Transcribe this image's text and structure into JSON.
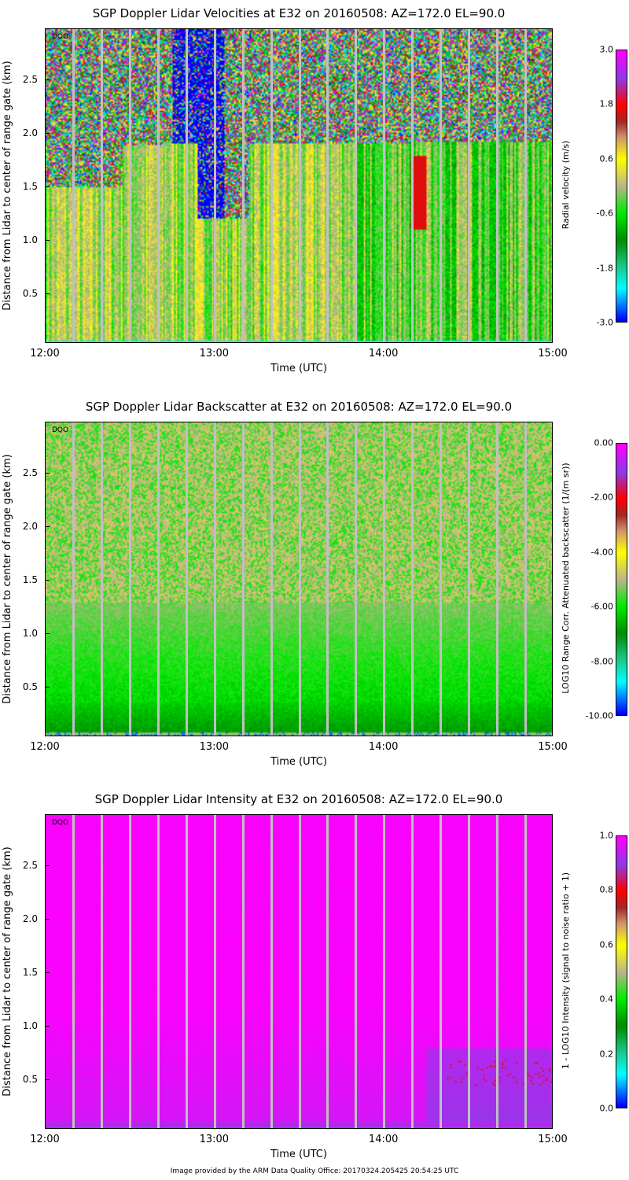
{
  "footer": "Image provided by the ARM Data Quality Office: 20170324.205425 20:54:25 UTC",
  "chart_data": [
    {
      "type": "heatmap",
      "title": "SGP Doppler Lidar Velocities at E32 on 20160508: AZ=172.0 EL=90.0",
      "xlabel": "Time (UTC)",
      "ylabel": "Distance from Lidar to center of range gate (km)",
      "xticks": [
        "12:00",
        "13:00",
        "14:00",
        "15:00"
      ],
      "yticks": [
        "0.5",
        "1.0",
        "1.5",
        "2.0",
        "2.5"
      ],
      "ylim": [
        0.04,
        2.98
      ],
      "xlim_hours": [
        12,
        15
      ],
      "flag": "DQO",
      "colorbar_label": "Radial velocity (m/s)",
      "colorbar_ticks": [
        "3.0",
        "1.8",
        "0.6",
        "-0.6",
        "-1.8",
        "-3.0"
      ],
      "zlim": [
        -3,
        3
      ],
      "field": "velocity",
      "data_gaps_minutes_after_12": [
        10,
        20,
        30,
        40,
        50,
        60,
        70,
        80,
        90,
        100,
        110,
        120,
        130,
        140,
        150,
        160,
        170
      ]
    },
    {
      "type": "heatmap",
      "title": "SGP Doppler Lidar Backscatter at E32 on 20160508: AZ=172.0 EL=90.0",
      "xlabel": "Time (UTC)",
      "ylabel": "Distance from Lidar to center of range gate (km)",
      "xticks": [
        "12:00",
        "13:00",
        "14:00",
        "15:00"
      ],
      "yticks": [
        "0.5",
        "1.0",
        "1.5",
        "2.0",
        "2.5"
      ],
      "ylim": [
        0.04,
        2.98
      ],
      "xlim_hours": [
        12,
        15
      ],
      "flag": "DQO",
      "colorbar_label": "LOG10 Range Corr. Attenuated backscatter (1/(m sr))",
      "colorbar_ticks": [
        "0.00",
        "-2.00",
        "-4.00",
        "-6.00",
        "-8.00",
        "-10.00"
      ],
      "zlim": [
        -10,
        0
      ],
      "field": "backscatter",
      "data_gaps_minutes_after_12": [
        10,
        20,
        30,
        40,
        50,
        60,
        70,
        80,
        90,
        100,
        110,
        120,
        130,
        140,
        150,
        160,
        170
      ]
    },
    {
      "type": "heatmap",
      "title": "SGP Doppler Lidar Intensity at E32 on 20160508: AZ=172.0 EL=90.0",
      "xlabel": "Time (UTC)",
      "ylabel": "Distance from Lidar to center of range gate (km)",
      "xticks": [
        "12:00",
        "13:00",
        "14:00",
        "15:00"
      ],
      "yticks": [
        "0.5",
        "1.0",
        "1.5",
        "2.0",
        "2.5"
      ],
      "ylim": [
        0.04,
        2.98
      ],
      "xlim_hours": [
        12,
        15
      ],
      "flag": "DQO",
      "colorbar_label": "1 - LOG10 Intensity (signal to noise ratio + 1)",
      "colorbar_ticks": [
        "1.0",
        "0.8",
        "0.6",
        "0.4",
        "0.2",
        "0.0"
      ],
      "zlim": [
        0,
        1
      ],
      "field": "intensity",
      "data_gaps_minutes_after_12": [
        10,
        20,
        30,
        40,
        50,
        60,
        70,
        80,
        90,
        100,
        110,
        120,
        130,
        140,
        150,
        160,
        170
      ]
    }
  ]
}
